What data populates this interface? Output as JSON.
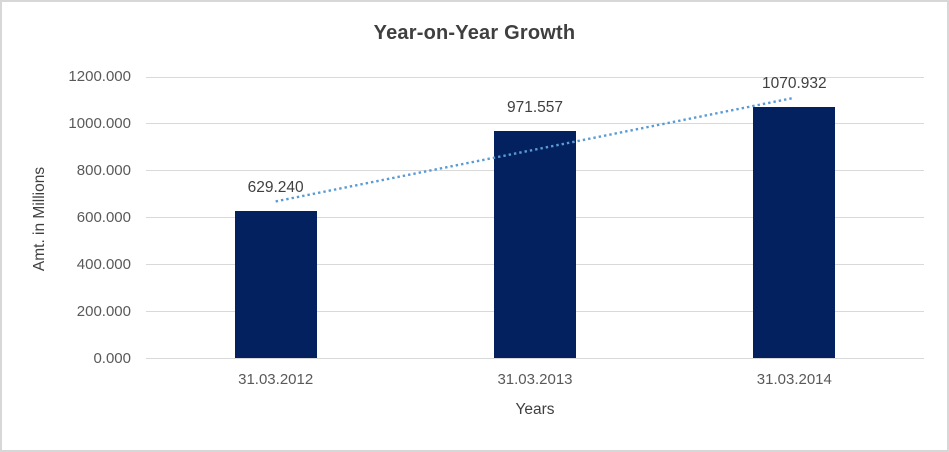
{
  "window": {
    "background_color": "#ffffff",
    "border_color": "#d7d7d7"
  },
  "chart_data": {
    "type": "bar",
    "title": "Year-on-Year Growth",
    "categories": [
      "31.03.2012",
      "31.03.2013",
      "31.03.2014"
    ],
    "values": [
      629.24,
      971.557,
      1070.932
    ],
    "data_labels": [
      "629.240",
      "971.557",
      "1070.932"
    ],
    "xlabel": "Years",
    "ylabel": "Amt. in Millions",
    "ylim": [
      0,
      1200
    ],
    "ytick_step": 200,
    "ytick_labels": [
      "0.000",
      "200.000",
      "400.000",
      "600.000",
      "800.000",
      "1000.000",
      "1200.000"
    ],
    "grid": true,
    "legend_position": "none",
    "series_color": "#03215f",
    "trendline": {
      "kind": "linear",
      "line_style": "dotted",
      "color": "#5b9bd5"
    },
    "gridline_color": "#d9d9d9",
    "title_color": "#3f3f3f",
    "tick_label_color": "#595959",
    "data_label_color": "#404040"
  }
}
